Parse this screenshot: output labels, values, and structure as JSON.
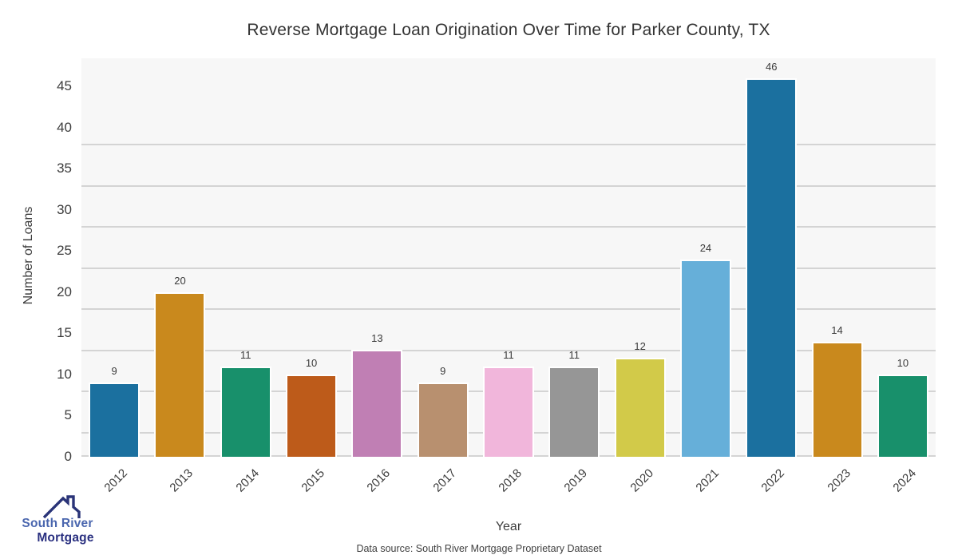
{
  "title": "Reverse Mortgage Loan Origination Over Time for Parker County, TX",
  "chart_data": {
    "type": "bar",
    "title": "Reverse Mortgage Loan Origination Over Time for Parker County, TX",
    "xlabel": "Year",
    "ylabel": "Number of Loans",
    "categories": [
      "2012",
      "2013",
      "2014",
      "2015",
      "2016",
      "2017",
      "2018",
      "2019",
      "2020",
      "2021",
      "2022",
      "2023",
      "2024"
    ],
    "values": [
      9,
      20,
      11,
      10,
      13,
      9,
      11,
      11,
      12,
      24,
      46,
      14,
      10
    ],
    "bar_colors": [
      "#1b709f",
      "#c9891d",
      "#18906b",
      "#bd5b1a",
      "#c07fb4",
      "#b8906f",
      "#f1b6db",
      "#969696",
      "#d2ca49",
      "#66afd9",
      "#1b709f",
      "#c9891d",
      "#18906b"
    ],
    "value_labels": [
      "9",
      "20",
      "11",
      "10",
      "13",
      "9",
      "11",
      "11",
      "12",
      "24",
      "46",
      "14",
      "10"
    ],
    "yticks": [
      0,
      5,
      10,
      15,
      20,
      25,
      30,
      35,
      40,
      45
    ],
    "ylim": [
      0,
      48.4
    ],
    "grid": true,
    "legend_position": "none",
    "plot_background": "#f7f7f7",
    "gridline_color": "#d4d4d4",
    "bar_edge_color": "#ffffff"
  },
  "footer": {
    "data_source": "Data source: South River Mortgage Proprietary Dataset"
  },
  "logo": {
    "name": "South River Mortgage",
    "line1": "South River",
    "line2": "Mortgage",
    "line1_color": "#4a66ae",
    "line2_color": "#2a3080",
    "icon": "house-roof-icon",
    "icon_color": "#2a3478"
  },
  "text_colors": {
    "title": "#333333",
    "ticks": "#3d3d3d",
    "value_labels": "#3a3a3a",
    "footer": "#404040"
  }
}
